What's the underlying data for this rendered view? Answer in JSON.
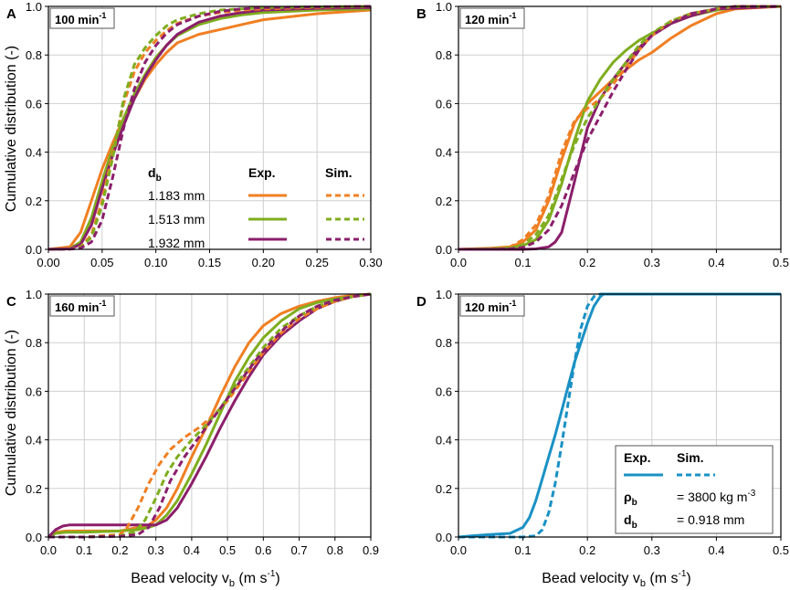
{
  "figure": {
    "x_axis_label": "Bead velocity v",
    "x_axis_sub": "b",
    "x_axis_unit": " (m s",
    "x_axis_unit_exp": "-1",
    "x_axis_close": ")",
    "y_axis_label": "Cumulative distribution (-)"
  },
  "colors": {
    "orange": "#f07f23",
    "green": "#7fad1f",
    "purple": "#8b1f6b",
    "blue": "#1a91c4"
  },
  "legend_A": {
    "header_symbol": "d",
    "header_sub": "b",
    "header_exp": "Exp.",
    "header_sim": "Sim.",
    "entries": [
      "1.183 mm",
      "1.513 mm",
      "1.932 mm"
    ]
  },
  "legend_D": {
    "header_exp": "Exp.",
    "header_sim": "Sim.",
    "rho_symbol": "ρ",
    "rho_sub": "b",
    "rho_value": "= 3800 kg m",
    "rho_exp": "-3",
    "db_symbol": "d",
    "db_sub": "b",
    "db_value": "= 0.918 mm"
  },
  "chart_data": [
    {
      "panel": "A",
      "type": "line",
      "label_text": "100 min",
      "label_exp": "-1",
      "xlim": [
        0,
        0.3
      ],
      "ylim": [
        0,
        1
      ],
      "xticks": [
        "0.00",
        "0.05",
        "0.10",
        "0.15",
        "0.20",
        "0.25",
        "0.30"
      ],
      "yticks": [
        "0.0",
        "0.2",
        "0.4",
        "0.6",
        "0.8",
        "1.0"
      ],
      "series": [
        {
          "name": "1.183 mm Exp.",
          "color": "orange",
          "dash": false,
          "x": [
            0,
            0.02,
            0.03,
            0.04,
            0.05,
            0.06,
            0.07,
            0.08,
            0.09,
            0.1,
            0.11,
            0.12,
            0.14,
            0.16,
            0.18,
            0.2,
            0.25,
            0.3
          ],
          "y": [
            0,
            0.01,
            0.07,
            0.2,
            0.33,
            0.44,
            0.54,
            0.62,
            0.7,
            0.76,
            0.81,
            0.85,
            0.885,
            0.905,
            0.925,
            0.945,
            0.97,
            0.985
          ]
        },
        {
          "name": "1.513 mm Exp.",
          "color": "green",
          "dash": false,
          "x": [
            0,
            0.02,
            0.03,
            0.04,
            0.05,
            0.06,
            0.07,
            0.08,
            0.09,
            0.1,
            0.11,
            0.12,
            0.14,
            0.16,
            0.18,
            0.2,
            0.25,
            0.3
          ],
          "y": [
            0,
            0.003,
            0.03,
            0.13,
            0.28,
            0.42,
            0.54,
            0.64,
            0.72,
            0.79,
            0.84,
            0.88,
            0.925,
            0.95,
            0.965,
            0.975,
            0.985,
            0.99
          ]
        },
        {
          "name": "1.932 mm Exp.",
          "color": "purple",
          "dash": false,
          "x": [
            0,
            0.02,
            0.03,
            0.04,
            0.05,
            0.06,
            0.07,
            0.08,
            0.09,
            0.1,
            0.11,
            0.12,
            0.14,
            0.16,
            0.18,
            0.2,
            0.25,
            0.3
          ],
          "y": [
            0,
            0.002,
            0.02,
            0.1,
            0.25,
            0.39,
            0.51,
            0.62,
            0.71,
            0.78,
            0.84,
            0.885,
            0.935,
            0.96,
            0.975,
            0.985,
            0.992,
            0.995
          ]
        },
        {
          "name": "1.183 mm Sim.",
          "color": "orange",
          "dash": true,
          "x": [
            0,
            0.02,
            0.03,
            0.04,
            0.05,
            0.06,
            0.07,
            0.08,
            0.09,
            0.1,
            0.11,
            0.12,
            0.14,
            0.16,
            0.18,
            0.2,
            0.25,
            0.3
          ],
          "y": [
            0,
            0.001,
            0.01,
            0.06,
            0.2,
            0.4,
            0.6,
            0.73,
            0.81,
            0.86,
            0.9,
            0.93,
            0.96,
            0.975,
            0.985,
            0.99,
            0.996,
            1
          ]
        },
        {
          "name": "1.513 mm Sim.",
          "color": "green",
          "dash": true,
          "x": [
            0,
            0.02,
            0.03,
            0.04,
            0.05,
            0.06,
            0.07,
            0.08,
            0.09,
            0.1,
            0.11,
            0.12,
            0.14,
            0.16,
            0.18,
            0.2,
            0.25,
            0.3
          ],
          "y": [
            0,
            0.001,
            0.008,
            0.05,
            0.18,
            0.38,
            0.62,
            0.76,
            0.83,
            0.88,
            0.92,
            0.945,
            0.97,
            0.985,
            0.99,
            0.995,
            0.998,
            1
          ]
        },
        {
          "name": "1.932 mm Sim.",
          "color": "purple",
          "dash": true,
          "x": [
            0,
            0.02,
            0.03,
            0.04,
            0.05,
            0.06,
            0.07,
            0.08,
            0.09,
            0.1,
            0.11,
            0.12,
            0.14,
            0.16,
            0.18,
            0.2,
            0.25,
            0.3
          ],
          "y": [
            0,
            0.001,
            0.005,
            0.03,
            0.12,
            0.3,
            0.5,
            0.66,
            0.77,
            0.84,
            0.89,
            0.925,
            0.96,
            0.98,
            0.99,
            0.995,
            0.998,
            1
          ]
        }
      ]
    },
    {
      "panel": "B",
      "type": "line",
      "label_text": "120 min",
      "label_exp": "-1",
      "xlim": [
        0,
        0.5
      ],
      "ylim": [
        0,
        1
      ],
      "xticks": [
        "0.0",
        "0.1",
        "0.2",
        "0.3",
        "0.4",
        "0.5"
      ],
      "yticks": [
        "0.0",
        "0.2",
        "0.4",
        "0.6",
        "0.8",
        "1.0"
      ],
      "series": [
        {
          "name": "1.183 mm Exp.",
          "color": "orange",
          "dash": false,
          "x": [
            0,
            0.05,
            0.08,
            0.1,
            0.12,
            0.14,
            0.16,
            0.18,
            0.2,
            0.22,
            0.24,
            0.26,
            0.28,
            0.3,
            0.33,
            0.36,
            0.4,
            0.43,
            0.5
          ],
          "y": [
            0,
            0.005,
            0.01,
            0.03,
            0.08,
            0.2,
            0.37,
            0.52,
            0.6,
            0.65,
            0.7,
            0.74,
            0.78,
            0.81,
            0.87,
            0.92,
            0.97,
            0.99,
            1
          ]
        },
        {
          "name": "1.513 mm Exp.",
          "color": "green",
          "dash": false,
          "x": [
            0,
            0.05,
            0.08,
            0.1,
            0.12,
            0.14,
            0.16,
            0.18,
            0.2,
            0.22,
            0.24,
            0.26,
            0.28,
            0.3,
            0.33,
            0.36,
            0.4,
            0.43,
            0.5
          ],
          "y": [
            0,
            0.003,
            0.006,
            0.015,
            0.04,
            0.12,
            0.27,
            0.45,
            0.61,
            0.7,
            0.77,
            0.82,
            0.86,
            0.89,
            0.93,
            0.96,
            0.985,
            0.995,
            1
          ]
        },
        {
          "name": "1.932 mm Exp.",
          "color": "purple",
          "dash": false,
          "x": [
            0,
            0.05,
            0.08,
            0.1,
            0.12,
            0.14,
            0.15,
            0.16,
            0.18,
            0.2,
            0.22,
            0.24,
            0.26,
            0.28,
            0.3,
            0.33,
            0.36,
            0.4,
            0.5
          ],
          "y": [
            0,
            0,
            0,
            0,
            0.002,
            0.01,
            0.03,
            0.07,
            0.28,
            0.5,
            0.62,
            0.7,
            0.77,
            0.83,
            0.88,
            0.93,
            0.96,
            0.99,
            1
          ]
        },
        {
          "name": "1.183 mm Sim.",
          "color": "orange",
          "dash": true,
          "x": [
            0,
            0.05,
            0.08,
            0.1,
            0.12,
            0.14,
            0.16,
            0.18,
            0.2,
            0.22,
            0.24,
            0.26,
            0.28,
            0.3,
            0.33,
            0.36,
            0.4,
            0.43,
            0.5
          ],
          "y": [
            0,
            0.002,
            0.01,
            0.04,
            0.1,
            0.22,
            0.4,
            0.53,
            0.58,
            0.62,
            0.68,
            0.75,
            0.82,
            0.88,
            0.94,
            0.97,
            0.99,
            1,
            1
          ]
        },
        {
          "name": "1.513 mm Sim.",
          "color": "green",
          "dash": true,
          "x": [
            0,
            0.05,
            0.08,
            0.1,
            0.12,
            0.14,
            0.16,
            0.18,
            0.2,
            0.22,
            0.24,
            0.26,
            0.28,
            0.3,
            0.33,
            0.36,
            0.4,
            0.43,
            0.5
          ],
          "y": [
            0,
            0.001,
            0.005,
            0.02,
            0.06,
            0.14,
            0.29,
            0.43,
            0.54,
            0.62,
            0.7,
            0.77,
            0.84,
            0.89,
            0.94,
            0.97,
            0.99,
            1,
            1
          ]
        },
        {
          "name": "1.932 mm Sim.",
          "color": "purple",
          "dash": true,
          "x": [
            0,
            0.05,
            0.08,
            0.1,
            0.12,
            0.14,
            0.16,
            0.18,
            0.2,
            0.22,
            0.24,
            0.26,
            0.28,
            0.3,
            0.33,
            0.36,
            0.4,
            0.43,
            0.5
          ],
          "y": [
            0,
            0,
            0.002,
            0.008,
            0.03,
            0.08,
            0.18,
            0.32,
            0.45,
            0.55,
            0.65,
            0.74,
            0.82,
            0.88,
            0.93,
            0.97,
            0.99,
            1,
            1
          ]
        }
      ]
    },
    {
      "panel": "C",
      "type": "line",
      "label_text": "160 min",
      "label_exp": "-1",
      "xlim": [
        0,
        0.9
      ],
      "ylim": [
        0,
        1
      ],
      "xticks": [
        "0.0",
        "0.1",
        "0.2",
        "0.3",
        "0.4",
        "0.5",
        "0.6",
        "0.7",
        "0.8",
        "0.9"
      ],
      "yticks": [
        "0.0",
        "0.2",
        "0.4",
        "0.6",
        "0.8",
        "1.0"
      ],
      "series": [
        {
          "name": "1.183 mm Exp.",
          "color": "orange",
          "dash": false,
          "x": [
            0,
            0.02,
            0.05,
            0.1,
            0.2,
            0.25,
            0.28,
            0.3,
            0.33,
            0.36,
            0.4,
            0.44,
            0.48,
            0.52,
            0.56,
            0.6,
            0.65,
            0.7,
            0.75,
            0.8,
            0.85,
            0.9
          ],
          "y": [
            0,
            0.02,
            0.025,
            0.025,
            0.025,
            0.04,
            0.05,
            0.07,
            0.12,
            0.2,
            0.33,
            0.45,
            0.58,
            0.7,
            0.8,
            0.87,
            0.92,
            0.95,
            0.97,
            0.985,
            0.995,
            1
          ]
        },
        {
          "name": "1.513 mm Exp.",
          "color": "green",
          "dash": false,
          "x": [
            0,
            0.02,
            0.05,
            0.1,
            0.2,
            0.25,
            0.28,
            0.3,
            0.33,
            0.36,
            0.4,
            0.44,
            0.48,
            0.52,
            0.56,
            0.6,
            0.65,
            0.7,
            0.75,
            0.8,
            0.85,
            0.9
          ],
          "y": [
            0,
            0.015,
            0.02,
            0.02,
            0.025,
            0.03,
            0.04,
            0.05,
            0.09,
            0.15,
            0.26,
            0.38,
            0.51,
            0.64,
            0.74,
            0.82,
            0.89,
            0.94,
            0.965,
            0.98,
            0.99,
            1
          ]
        },
        {
          "name": "1.932 mm Exp.",
          "color": "purple",
          "dash": false,
          "x": [
            0,
            0.02,
            0.04,
            0.06,
            0.1,
            0.2,
            0.25,
            0.3,
            0.33,
            0.36,
            0.4,
            0.44,
            0.48,
            0.52,
            0.56,
            0.6,
            0.65,
            0.7,
            0.75,
            0.8,
            0.85,
            0.9
          ],
          "y": [
            0,
            0.03,
            0.045,
            0.05,
            0.05,
            0.05,
            0.05,
            0.05,
            0.07,
            0.12,
            0.22,
            0.33,
            0.45,
            0.56,
            0.66,
            0.75,
            0.83,
            0.89,
            0.94,
            0.97,
            0.99,
            1
          ]
        },
        {
          "name": "1.183 mm Sim.",
          "color": "orange",
          "dash": true,
          "x": [
            0,
            0.1,
            0.2,
            0.22,
            0.25,
            0.28,
            0.31,
            0.34,
            0.38,
            0.42,
            0.46,
            0.5,
            0.55,
            0.6,
            0.65,
            0.7,
            0.75,
            0.8,
            0.85,
            0.9
          ],
          "y": [
            0,
            0,
            0.01,
            0.04,
            0.12,
            0.22,
            0.3,
            0.36,
            0.41,
            0.45,
            0.5,
            0.56,
            0.66,
            0.76,
            0.84,
            0.9,
            0.94,
            0.97,
            0.99,
            1
          ]
        },
        {
          "name": "1.513 mm Sim.",
          "color": "green",
          "dash": true,
          "x": [
            0,
            0.1,
            0.2,
            0.24,
            0.27,
            0.3,
            0.33,
            0.36,
            0.4,
            0.44,
            0.48,
            0.52,
            0.56,
            0.6,
            0.65,
            0.7,
            0.75,
            0.8,
            0.85,
            0.9
          ],
          "y": [
            0,
            0,
            0.005,
            0.02,
            0.07,
            0.16,
            0.26,
            0.33,
            0.4,
            0.46,
            0.53,
            0.62,
            0.7,
            0.78,
            0.86,
            0.91,
            0.95,
            0.975,
            0.99,
            1
          ]
        },
        {
          "name": "1.932 mm Sim.",
          "color": "purple",
          "dash": true,
          "x": [
            0,
            0.1,
            0.2,
            0.25,
            0.28,
            0.31,
            0.34,
            0.38,
            0.42,
            0.46,
            0.5,
            0.54,
            0.58,
            0.62,
            0.66,
            0.7,
            0.75,
            0.8,
            0.85,
            0.9
          ],
          "y": [
            0,
            0,
            0.003,
            0.01,
            0.04,
            0.12,
            0.23,
            0.33,
            0.41,
            0.49,
            0.57,
            0.65,
            0.73,
            0.8,
            0.86,
            0.91,
            0.95,
            0.975,
            0.99,
            1
          ]
        }
      ]
    },
    {
      "panel": "D",
      "type": "line",
      "label_text": "120 min",
      "label_exp": "-1",
      "xlim": [
        0,
        0.5
      ],
      "ylim": [
        0,
        1
      ],
      "xticks": [
        "0.0",
        "0.1",
        "0.2",
        "0.3",
        "0.4",
        "0.5"
      ],
      "yticks": [
        "0.0",
        "0.2",
        "0.4",
        "0.6",
        "0.8",
        "1.0"
      ],
      "series": [
        {
          "name": "0.918 mm Exp.",
          "color": "blue",
          "dash": false,
          "x": [
            0,
            0.02,
            0.05,
            0.08,
            0.1,
            0.11,
            0.12,
            0.13,
            0.14,
            0.15,
            0.16,
            0.17,
            0.18,
            0.19,
            0.2,
            0.21,
            0.22,
            0.225,
            0.25,
            0.3,
            0.4,
            0.5
          ],
          "y": [
            0,
            0.005,
            0.01,
            0.015,
            0.04,
            0.08,
            0.15,
            0.24,
            0.33,
            0.42,
            0.52,
            0.62,
            0.72,
            0.8,
            0.88,
            0.95,
            0.99,
            1,
            1,
            1,
            1,
            1
          ]
        },
        {
          "name": "0.918 mm Sim.",
          "color": "blue",
          "dash": true,
          "x": [
            0,
            0.1,
            0.12,
            0.13,
            0.14,
            0.15,
            0.16,
            0.17,
            0.18,
            0.19,
            0.2,
            0.21,
            0.22,
            0.5
          ],
          "y": [
            0,
            0,
            0.005,
            0.03,
            0.1,
            0.22,
            0.38,
            0.55,
            0.72,
            0.86,
            0.95,
            0.99,
            1,
            1
          ]
        }
      ]
    }
  ]
}
